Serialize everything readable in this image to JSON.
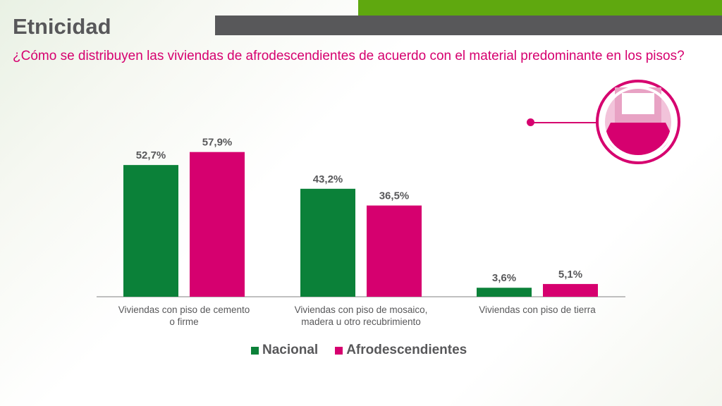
{
  "header": {
    "title": "Etnicidad",
    "subtitle": "¿Cómo se distribuyen las viviendas de afrodescendientes de acuerdo con el material predominante en los pisos?"
  },
  "icon": {
    "name": "floor-room-icon"
  },
  "colors": {
    "nacional": "#0b8139",
    "afro": "#d6006f",
    "accent_green": "#5fa80f",
    "gray": "#58585a"
  },
  "chart_data": {
    "type": "bar",
    "categories": [
      [
        "Viviendas con piso de cemento",
        "o firme"
      ],
      [
        "Viviendas con piso de mosaico,",
        "madera u otro recubrimiento"
      ],
      [
        "Viviendas con piso de tierra"
      ]
    ],
    "series": [
      {
        "name": "Nacional",
        "values": [
          52.7,
          43.2,
          3.6
        ],
        "labels": [
          "52,7%",
          "43,2%",
          "3,6%"
        ]
      },
      {
        "name": "Afrodescendientes",
        "values": [
          57.9,
          36.5,
          5.1
        ],
        "labels": [
          "57,9%",
          "36,5%",
          "5,1%"
        ]
      }
    ],
    "ylim": [
      0,
      60
    ],
    "grid": false,
    "legend": "bottom"
  }
}
